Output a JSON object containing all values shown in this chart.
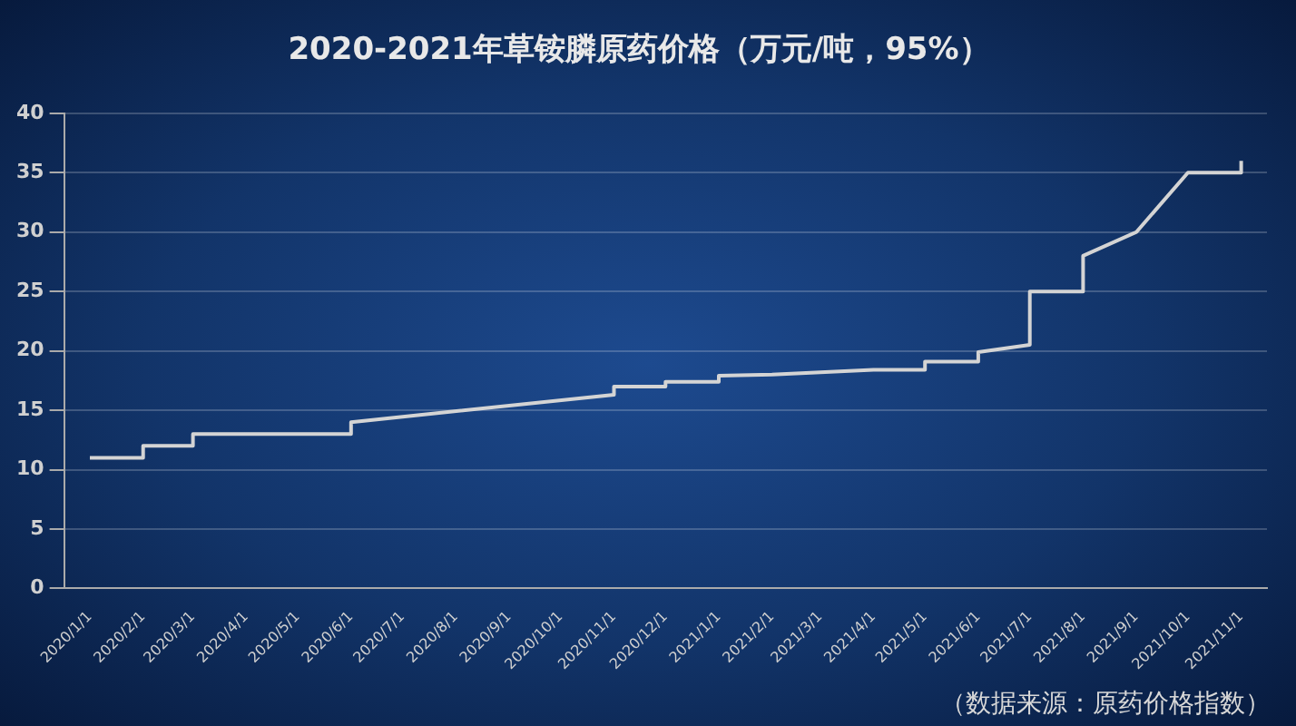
{
  "chart_data": {
    "type": "line",
    "title": "2020-2021年草铵膦原药价格（万元/吨，95%）",
    "annotations": [
      "（数据来源：原药价格指数）"
    ],
    "x": [
      "2020-01-01",
      "2020-02-01",
      "2020-02-01",
      "2020-03-01",
      "2020-03-01",
      "2020-06-01",
      "2020-06-01",
      "2020-11-01",
      "2020-11-01",
      "2020-12-01",
      "2020-12-01",
      "2021-01-01",
      "2021-01-01",
      "2021-02-01",
      "2021-04-01",
      "2021-05-01",
      "2021-05-01",
      "2021-06-01",
      "2021-06-01",
      "2021-07-01",
      "2021-07-01",
      "2021-08-01",
      "2021-08-01",
      "2021-09-01",
      "2021-10-01",
      "2021-11-01",
      "2021-11-01"
    ],
    "series": [
      {
        "color": "#d4d4d4",
        "values": [
          11,
          11,
          12,
          12,
          13,
          13,
          14,
          16.3,
          17,
          17,
          17.4,
          17.4,
          17.9,
          18,
          18.4,
          18.4,
          19.1,
          19.1,
          19.9,
          20.5,
          25,
          25,
          28,
          30,
          35,
          35,
          36
        ]
      }
    ],
    "xlim": [
      "2019-12-17",
      "2021-11-16"
    ],
    "xticks": [
      {
        "value": "2020-01-01",
        "label": "2020/1/1"
      },
      {
        "value": "2020-02-01",
        "label": "2020/2/1"
      },
      {
        "value": "2020-03-01",
        "label": "2020/3/1"
      },
      {
        "value": "2020-04-01",
        "label": "2020/4/1"
      },
      {
        "value": "2020-05-01",
        "label": "2020/5/1"
      },
      {
        "value": "2020-06-01",
        "label": "2020/6/1"
      },
      {
        "value": "2020-07-01",
        "label": "2020/7/1"
      },
      {
        "value": "2020-08-01",
        "label": "2020/8/1"
      },
      {
        "value": "2020-09-01",
        "label": "2020/9/1"
      },
      {
        "value": "2020-10-01",
        "label": "2020/10/1"
      },
      {
        "value": "2020-11-01",
        "label": "2020/11/1"
      },
      {
        "value": "2020-12-01",
        "label": "2020/12/1"
      },
      {
        "value": "2021-01-01",
        "label": "2021/1/1"
      },
      {
        "value": "2021-02-01",
        "label": "2021/2/1"
      },
      {
        "value": "2021-03-01",
        "label": "2021/3/1"
      },
      {
        "value": "2021-04-01",
        "label": "2021/4/1"
      },
      {
        "value": "2021-05-01",
        "label": "2021/5/1"
      },
      {
        "value": "2021-06-01",
        "label": "2021/6/1"
      },
      {
        "value": "2021-07-01",
        "label": "2021/7/1"
      },
      {
        "value": "2021-08-01",
        "label": "2021/8/1"
      },
      {
        "value": "2021-09-01",
        "label": "2021/9/1"
      },
      {
        "value": "2021-10-01",
        "label": "2021/10/1"
      },
      {
        "value": "2021-11-01",
        "label": "2021/11/1"
      }
    ],
    "ylim": [
      0,
      40
    ],
    "yticks": [
      0,
      5,
      10,
      15,
      20,
      25,
      30,
      35,
      40
    ],
    "grid": "y",
    "legend": false,
    "marker": "none",
    "line_style": "solid"
  }
}
